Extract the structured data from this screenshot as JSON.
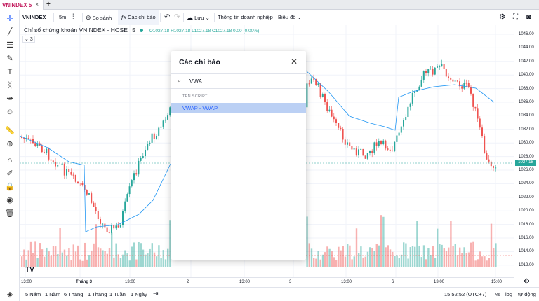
{
  "tab": {
    "title": "VNINDEX 5",
    "close": "×",
    "new": "+"
  },
  "toolbar": {
    "symbol": "VNINDEX",
    "interval": "5m",
    "compare": "So sánh",
    "indicators": "Các chỉ báo",
    "save": "Lưu",
    "company_info": "Thông tin doanh nghiệp",
    "chart_type": "Biểu đồ"
  },
  "legend": {
    "title": "Chỉ số chứng khoán VNINDEX - HOSE",
    "interval": "5",
    "ohlc": "O1027.18 H1027.18 L1027.18 C1027.18 0.00 (0.00%)",
    "collapse": "3"
  },
  "modal": {
    "title": "Các chỉ báo",
    "search_value": "VWA",
    "section": "TÊN SCRIPT",
    "item": "VWAP - VWAP"
  },
  "price_axis": {
    "labels": [
      "1046.00",
      "1044.00",
      "1042.00",
      "1040.00",
      "1038.00",
      "1036.00",
      "1034.00",
      "1032.00",
      "1030.00",
      "1028.00",
      "1026.00",
      "1024.00",
      "1022.00",
      "1020.00",
      "1018.00",
      "1016.00",
      "1014.00",
      "1012.00"
    ],
    "current": "1027.18"
  },
  "time_axis": {
    "labels": [
      "13:00",
      "Tháng 3",
      "13:00",
      "2",
      "13:00",
      "3",
      "13:00",
      "6",
      "13:00",
      "15:00"
    ]
  },
  "bottom": {
    "ranges": [
      "5 Năm",
      "1 Năm",
      "6 Tháng",
      "1 Tháng",
      "1 Tuần",
      "1 Ngày"
    ],
    "time": "15:52:52 (UTC+7)",
    "percent": "%",
    "log": "log",
    "auto": "tự động"
  },
  "colors": {
    "up": "#26a69a",
    "down": "#ef5350",
    "vwap": "#2196f3",
    "accent": "#c2185b"
  }
}
